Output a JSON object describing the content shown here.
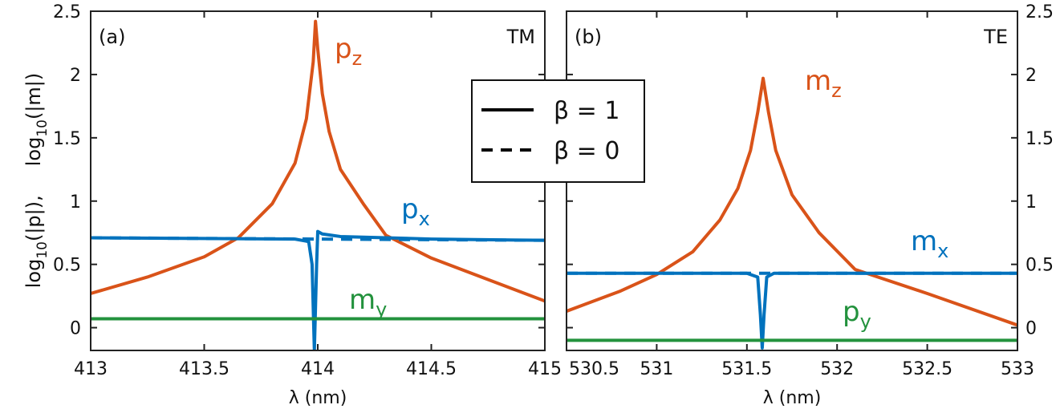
{
  "chart_data": [
    {
      "type": "line",
      "panel_label": "(a)",
      "mode_label": "TM",
      "xlabel": "λ (nm)",
      "ylabel": [
        {
          "text": "log"
        },
        {
          "text": "10",
          "sub": true
        },
        {
          "text": "(|p|),"
        },
        {
          "text": "log"
        },
        {
          "text": "10",
          "sub": true
        },
        {
          "text": "(|m|)"
        }
      ],
      "xlim": [
        413,
        415
      ],
      "xticks": [
        413,
        413.5,
        414,
        414.5,
        415
      ],
      "ylim": [
        -0.18,
        2.5
      ],
      "yticks": [
        0,
        0.5,
        1,
        1.5,
        2,
        2.5
      ],
      "yaxis_side": "left",
      "series": [
        {
          "name": "p",
          "sub": "z",
          "color": "#d95319",
          "dash": "solid",
          "x": [
            413,
            413.25,
            413.5,
            413.65,
            413.8,
            413.9,
            413.95,
            413.98,
            413.99,
            414.0,
            414.02,
            414.05,
            414.1,
            414.2,
            414.3,
            414.5,
            414.75,
            415
          ],
          "values": [
            0.27,
            0.4,
            0.56,
            0.71,
            0.98,
            1.3,
            1.65,
            2.1,
            2.42,
            2.2,
            1.85,
            1.55,
            1.25,
            0.98,
            0.73,
            0.55,
            0.38,
            0.21
          ]
        },
        {
          "color": "#0072bd",
          "dash": "dashed",
          "x": [
            413,
            415
          ],
          "values": [
            0.71,
            0.69
          ]
        },
        {
          "name": "p",
          "sub": "x",
          "color": "#0072bd",
          "dash": "solid",
          "x": [
            413,
            413.5,
            413.9,
            413.96,
            413.975,
            413.985,
            413.995,
            414.0,
            414.02,
            414.1,
            414.5,
            415
          ],
          "values": [
            0.71,
            0.705,
            0.7,
            0.68,
            0.5,
            -0.18,
            0.5,
            0.76,
            0.74,
            0.72,
            0.7,
            0.69
          ]
        },
        {
          "name": "m",
          "sub": "y",
          "color": "#23923d",
          "dash": "solid",
          "x": [
            413,
            415
          ],
          "values": [
            0.07,
            0.07
          ]
        }
      ]
    },
    {
      "type": "line",
      "panel_label": "(b)",
      "mode_label": "TE",
      "xlabel": "λ (nm)",
      "xlim": [
        530.5,
        533
      ],
      "xticks": [
        530.5,
        531,
        531.5,
        532,
        532.5,
        533
      ],
      "ylim": [
        -0.18,
        2.5
      ],
      "yticks": [
        0,
        0.5,
        1,
        1.5,
        2,
        2.5
      ],
      "yaxis_side": "right",
      "series": [
        {
          "name": "m",
          "sub": "z",
          "color": "#d95319",
          "dash": "solid",
          "x": [
            530.5,
            530.8,
            531.0,
            531.2,
            531.35,
            531.45,
            531.52,
            531.56,
            531.59,
            531.62,
            531.66,
            531.75,
            531.9,
            532.1,
            532.5,
            533
          ],
          "values": [
            0.13,
            0.29,
            0.42,
            0.6,
            0.85,
            1.1,
            1.4,
            1.7,
            1.97,
            1.7,
            1.4,
            1.05,
            0.75,
            0.46,
            0.27,
            0.02
          ]
        },
        {
          "color": "#0072bd",
          "dash": "dashed",
          "x": [
            530.5,
            533
          ],
          "values": [
            0.43,
            0.43
          ]
        },
        {
          "name": "m",
          "sub": "x",
          "color": "#0072bd",
          "dash": "solid",
          "x": [
            530.5,
            531.5,
            531.56,
            531.575,
            531.585,
            531.595,
            531.61,
            531.65,
            533
          ],
          "values": [
            0.43,
            0.43,
            0.4,
            0.1,
            -0.16,
            0.1,
            0.4,
            0.43,
            0.43
          ]
        },
        {
          "name": "p",
          "sub": "y",
          "color": "#23923d",
          "dash": "solid",
          "x": [
            530.5,
            533
          ],
          "values": [
            -0.1,
            -0.1
          ]
        }
      ]
    }
  ],
  "legend": [
    {
      "label": "β = 1",
      "dash": "solid"
    },
    {
      "label": "β = 0",
      "dash": "dashed"
    }
  ]
}
